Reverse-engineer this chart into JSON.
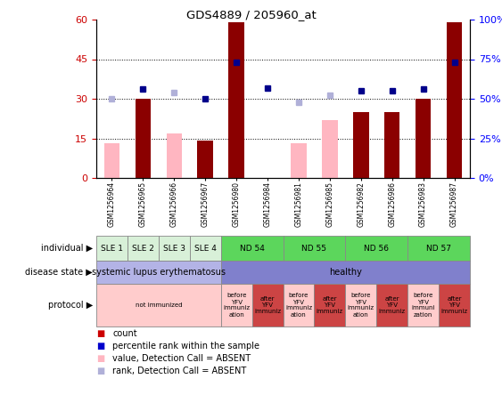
{
  "title": "GDS4889 / 205960_at",
  "samples": [
    "GSM1256964",
    "GSM1256965",
    "GSM1256966",
    "GSM1256967",
    "GSM1256980",
    "GSM1256984",
    "GSM1256981",
    "GSM1256985",
    "GSM1256982",
    "GSM1256986",
    "GSM1256983",
    "GSM1256987"
  ],
  "count_values": [
    null,
    30,
    null,
    14,
    59,
    null,
    null,
    null,
    25,
    25,
    30,
    59
  ],
  "count_absent": [
    13,
    null,
    17,
    null,
    null,
    null,
    13,
    22,
    null,
    null,
    null,
    null
  ],
  "rank_values": [
    null,
    56,
    null,
    50,
    73,
    57,
    null,
    null,
    55,
    55,
    56,
    73
  ],
  "rank_absent": [
    50,
    null,
    54,
    null,
    null,
    null,
    48,
    52,
    null,
    null,
    null,
    null
  ],
  "individual_spans": [
    {
      "label": "SLE 1",
      "start": 0,
      "end": 1,
      "color": "#d8f0d8"
    },
    {
      "label": "SLE 2",
      "start": 1,
      "end": 2,
      "color": "#d8f0d8"
    },
    {
      "label": "SLE 3",
      "start": 2,
      "end": 3,
      "color": "#d8f0d8"
    },
    {
      "label": "SLE 4",
      "start": 3,
      "end": 4,
      "color": "#d8f0d8"
    },
    {
      "label": "ND 54",
      "start": 4,
      "end": 6,
      "color": "#5cd65c"
    },
    {
      "label": "ND 55",
      "start": 6,
      "end": 8,
      "color": "#5cd65c"
    },
    {
      "label": "ND 56",
      "start": 8,
      "end": 10,
      "color": "#5cd65c"
    },
    {
      "label": "ND 57",
      "start": 10,
      "end": 12,
      "color": "#5cd65c"
    }
  ],
  "disease_spans": [
    {
      "label": "systemic lupus erythematosus",
      "start": 0,
      "end": 4,
      "color": "#b3b3e6"
    },
    {
      "label": "healthy",
      "start": 4,
      "end": 12,
      "color": "#8080cc"
    }
  ],
  "protocol_spans": [
    {
      "label": "not immunized",
      "start": 0,
      "end": 4,
      "color": "#ffcccc"
    },
    {
      "label": "before\nYFV\nimmuniz\nation",
      "start": 4,
      "end": 5,
      "color": "#ffcccc"
    },
    {
      "label": "after\nYFV\nimmuniz",
      "start": 5,
      "end": 6,
      "color": "#cc4444"
    },
    {
      "label": "before\nYFV\nimmuniz\nation",
      "start": 6,
      "end": 7,
      "color": "#ffcccc"
    },
    {
      "label": "after\nYFV\nimmuniz",
      "start": 7,
      "end": 8,
      "color": "#cc4444"
    },
    {
      "label": "before\nYFV\nimmuniz\nation",
      "start": 8,
      "end": 9,
      "color": "#ffcccc"
    },
    {
      "label": "after\nYFV\nimmuniz",
      "start": 9,
      "end": 10,
      "color": "#cc4444"
    },
    {
      "label": "before\nYFV\nimmuni\nzation",
      "start": 10,
      "end": 11,
      "color": "#ffcccc"
    },
    {
      "label": "after\nYFV\nimmuniz",
      "start": 11,
      "end": 12,
      "color": "#cc4444"
    }
  ],
  "bar_color_present": "#8b0000",
  "bar_color_absent": "#ffb6c1",
  "dot_color_present": "#00008b",
  "dot_color_absent": "#b0b0d8",
  "ylim_left": [
    0,
    60
  ],
  "ylim_right": [
    0,
    100
  ],
  "yticks_left": [
    0,
    15,
    30,
    45,
    60
  ],
  "yticks_right": [
    0,
    25,
    50,
    75,
    100
  ],
  "ytick_labels_right": [
    "0%",
    "25%",
    "50%",
    "75%",
    "100%"
  ],
  "legend_items": [
    {
      "label": "count",
      "color": "#cc0000"
    },
    {
      "label": "percentile rank within the sample",
      "color": "#0000cc"
    },
    {
      "label": "value, Detection Call = ABSENT",
      "color": "#ffb6c1"
    },
    {
      "label": "rank, Detection Call = ABSENT",
      "color": "#b0b0d8"
    }
  ],
  "row_labels": [
    "individual",
    "disease state",
    "protocol"
  ]
}
